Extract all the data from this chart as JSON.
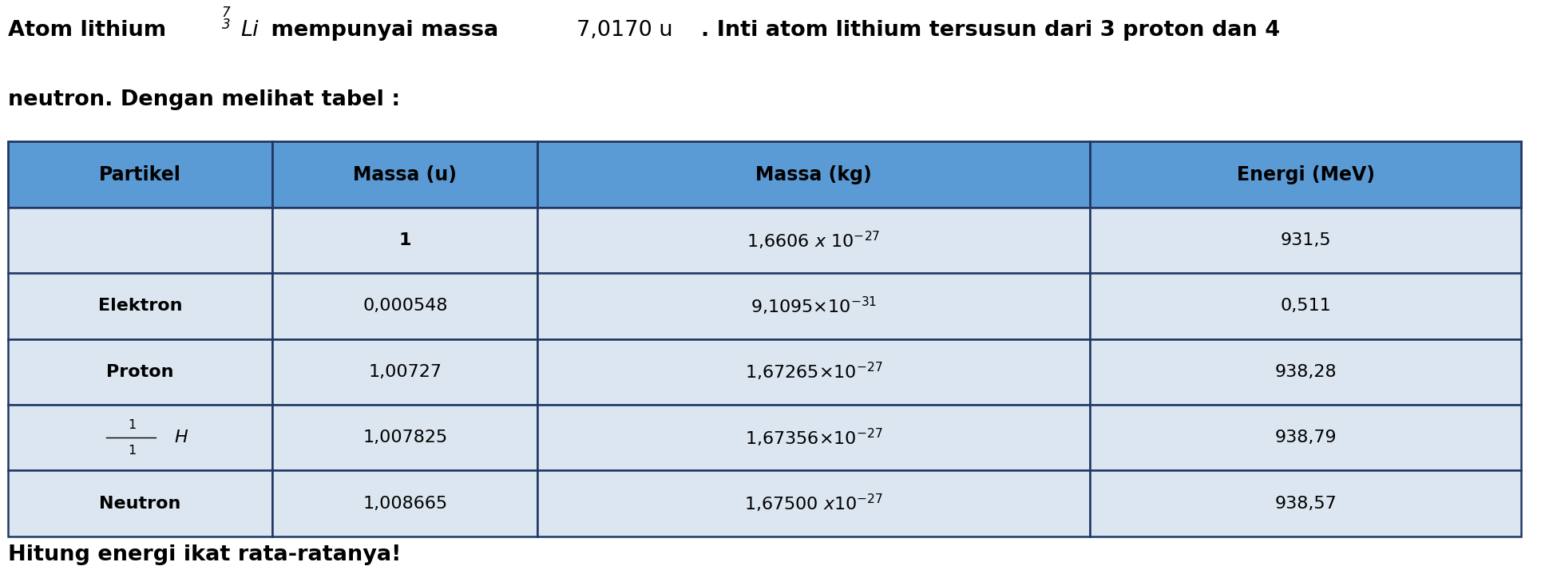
{
  "title_line1_bold": "Atom lithium ",
  "title_li_super": "7",
  "title_li_sub": "3",
  "title_li": "Li",
  "title_middle_bold": " mempunyai massa ",
  "title_mass": "7,0170 u",
  "title_end_bold": ". Inti atom lithium tersusun dari 3 proton dan 4",
  "line2": "neutron. Dengan melihat tabel :",
  "footer": "Hitung energi ikat rata-ratanya!",
  "header_bg": "#5b9bd5",
  "row_bg_light": "#dce6f1",
  "border_color": "#1f3864",
  "bg_color": "#ffffff",
  "col_headers": [
    "Partikel",
    "Massa (u)",
    "Massa (kg)",
    "Energi (MeV)"
  ],
  "col_props": [
    0.175,
    0.175,
    0.365,
    0.285
  ],
  "particle_bold": [
    false,
    true,
    true,
    false,
    true
  ],
  "rows_col0": [
    "",
    "Elektron",
    "Proton",
    "H_frac",
    "Neutron"
  ],
  "rows_col1": [
    "1",
    "0,000548",
    "1,00727",
    "1,007825",
    "1,008665"
  ],
  "rows_col1_bold": [
    true,
    false,
    false,
    false,
    false
  ],
  "rows_col2_latex": [
    "$1{,}6606\\ x\\ 10^{-27}$",
    "$9{,}1095{\\times}10^{-31}$",
    "$1{,}67265{\\times}10^{-27}$",
    "$1{,}67356{\\times}10^{-27}$",
    "$1{,}67500\\ x10^{-27}$"
  ],
  "rows_col3": [
    "931,5",
    "0,511",
    "938,28",
    "938,79",
    "938,57"
  ]
}
